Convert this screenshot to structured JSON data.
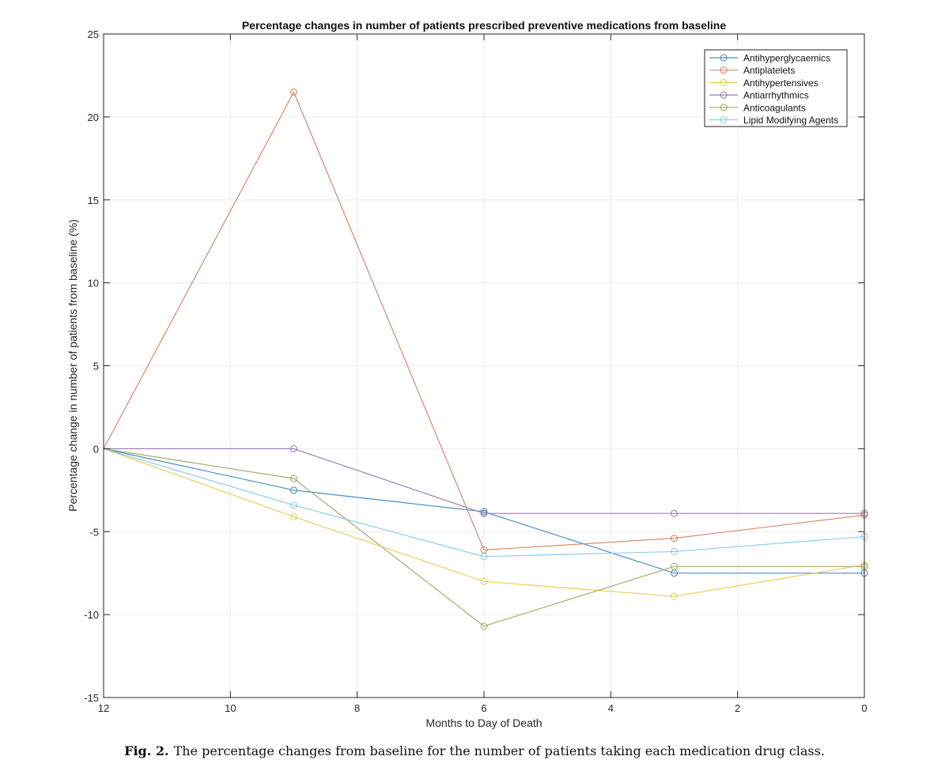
{
  "chart_data": {
    "type": "line",
    "title": "Percentage changes in number of patients prescribed preventive medications from baseline",
    "xlabel": "Months to Day of Death",
    "ylabel": "Percentage change in number of patients from baseline (%)",
    "xlim": [
      12,
      0
    ],
    "ylim": [
      -15,
      25
    ],
    "x_reversed": true,
    "xticks": [
      12,
      10,
      8,
      6,
      4,
      2,
      0
    ],
    "yticks": [
      25,
      20,
      15,
      10,
      5,
      0,
      -5,
      -10,
      -15
    ],
    "grid": true,
    "legend_position": "top-right",
    "x": [
      12,
      9,
      6,
      3,
      0
    ],
    "series": [
      {
        "name": "Antihyperglycaemics",
        "color": "#4a8ec2",
        "values": [
          0,
          -2.5,
          -3.8,
          -7.5,
          -7.5
        ]
      },
      {
        "name": "Antiplatelets",
        "color": "#d38b6a",
        "values": [
          0,
          21.5,
          -6.1,
          -5.4,
          -4.0
        ]
      },
      {
        "name": "Antihypertensives",
        "color": "#e8cf5e",
        "values": [
          0,
          -4.1,
          -8.0,
          -8.9,
          -7.0
        ]
      },
      {
        "name": "Antiarrhythmics",
        "color": "#9b7fb4",
        "values": [
          0,
          0,
          -3.9,
          -3.9,
          -3.9
        ]
      },
      {
        "name": "Anticoagulants",
        "color": "#a6ad6c",
        "values": [
          0,
          -1.8,
          -10.7,
          -7.1,
          -7.1
        ]
      },
      {
        "name": "Lipid Modifying Agents",
        "color": "#8fcde8",
        "values": [
          0,
          -3.4,
          -6.5,
          -6.2,
          -5.3
        ]
      }
    ]
  },
  "caption": {
    "label": "Fig. 2.",
    "text": "The percentage changes from baseline for the number of patients taking each medication drug class."
  }
}
